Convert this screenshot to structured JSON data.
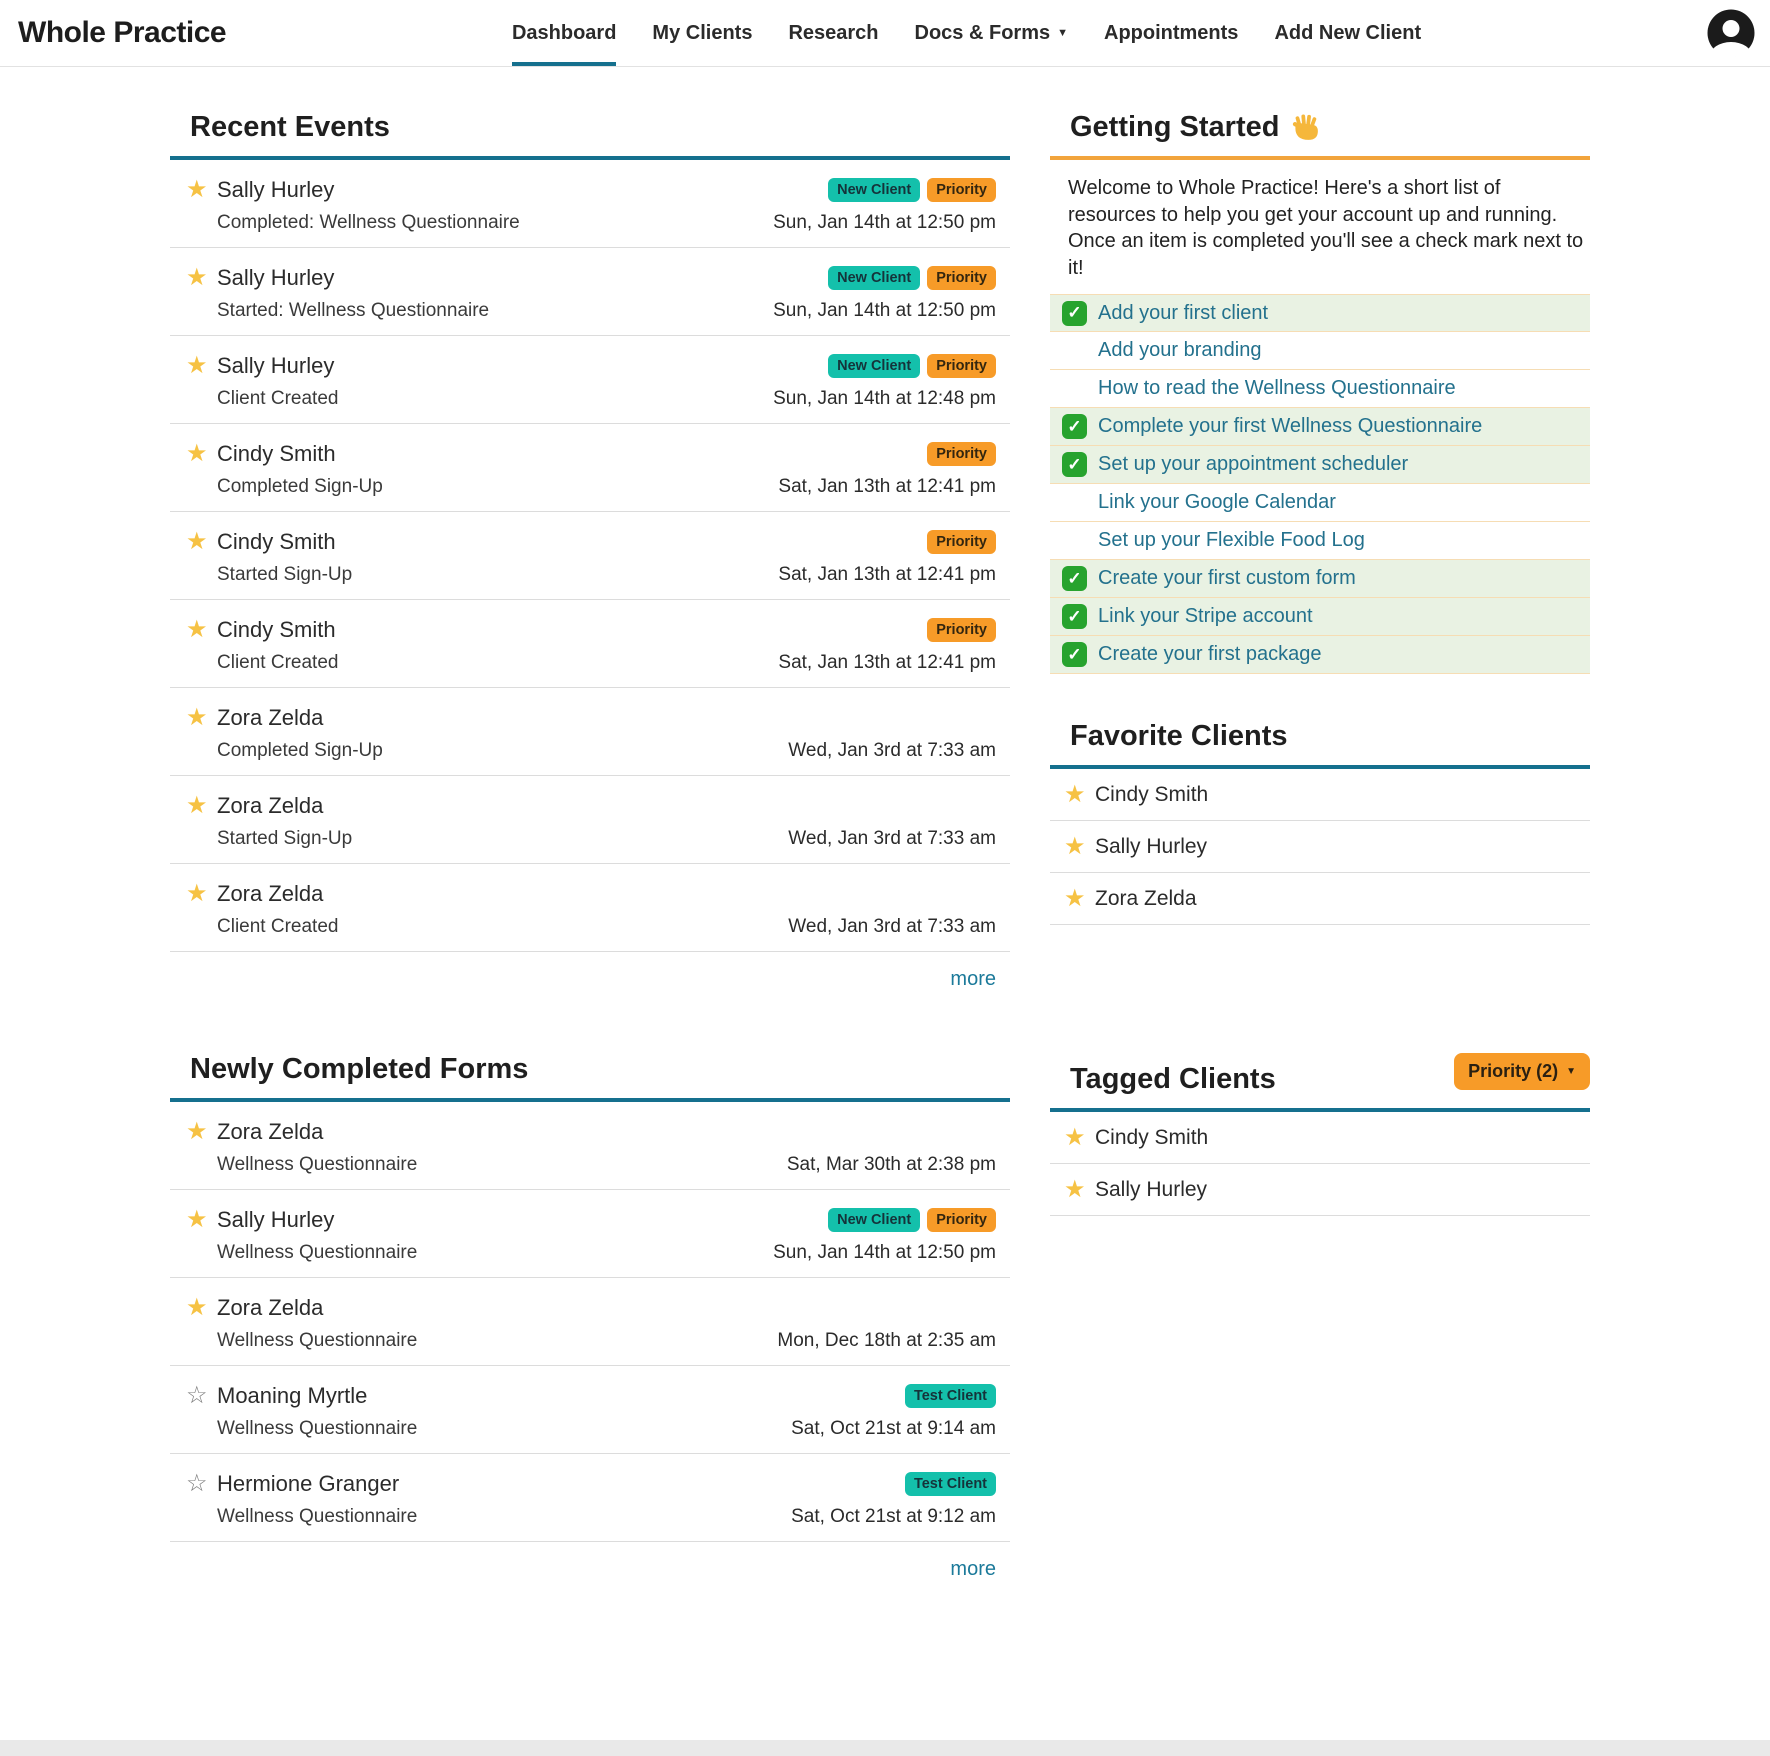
{
  "nav": {
    "brand": "Whole Practice",
    "items": [
      {
        "label": "Dashboard",
        "slug": "dashboard",
        "active": true,
        "caret": false
      },
      {
        "label": "My Clients",
        "slug": "my-clients",
        "active": false,
        "caret": false
      },
      {
        "label": "Research",
        "slug": "research",
        "active": false,
        "caret": false
      },
      {
        "label": "Docs & Forms",
        "slug": "docs-forms",
        "active": false,
        "caret": true
      },
      {
        "label": "Appointments",
        "slug": "appointments",
        "active": false,
        "caret": false
      },
      {
        "label": "Add New Client",
        "slug": "add-new-client",
        "active": false,
        "caret": false
      }
    ]
  },
  "recent_events": {
    "title": "Recent Events",
    "more_label": "more",
    "rows": [
      {
        "name": "Sally Hurley",
        "starred": true,
        "badges": [
          "New Client",
          "Priority"
        ],
        "detail": "Completed: Wellness Questionnaire",
        "timestamp": "Sun, Jan 14th at 12:50 pm"
      },
      {
        "name": "Sally Hurley",
        "starred": true,
        "badges": [
          "New Client",
          "Priority"
        ],
        "detail": "Started: Wellness Questionnaire",
        "timestamp": "Sun, Jan 14th at 12:50 pm"
      },
      {
        "name": "Sally Hurley",
        "starred": true,
        "badges": [
          "New Client",
          "Priority"
        ],
        "detail": "Client Created",
        "timestamp": "Sun, Jan 14th at 12:48 pm"
      },
      {
        "name": "Cindy Smith",
        "starred": true,
        "badges": [
          "Priority"
        ],
        "detail": "Completed Sign-Up",
        "timestamp": "Sat, Jan 13th at 12:41 pm"
      },
      {
        "name": "Cindy Smith",
        "starred": true,
        "badges": [
          "Priority"
        ],
        "detail": "Started Sign-Up",
        "timestamp": "Sat, Jan 13th at 12:41 pm"
      },
      {
        "name": "Cindy Smith",
        "starred": true,
        "badges": [
          "Priority"
        ],
        "detail": "Client Created",
        "timestamp": "Sat, Jan 13th at 12:41 pm"
      },
      {
        "name": "Zora Zelda",
        "starred": true,
        "badges": [],
        "detail": "Completed Sign-Up",
        "timestamp": "Wed, Jan 3rd at 7:33 am"
      },
      {
        "name": "Zora Zelda",
        "starred": true,
        "badges": [],
        "detail": "Started Sign-Up",
        "timestamp": "Wed, Jan 3rd at 7:33 am"
      },
      {
        "name": "Zora Zelda",
        "starred": true,
        "badges": [],
        "detail": "Client Created",
        "timestamp": "Wed, Jan 3rd at 7:33 am"
      }
    ]
  },
  "newly_completed_forms": {
    "title": "Newly Completed Forms",
    "more_label": "more",
    "rows": [
      {
        "name": "Zora Zelda",
        "starred": true,
        "badges": [],
        "detail": "Wellness Questionnaire",
        "timestamp": "Sat, Mar 30th at 2:38 pm"
      },
      {
        "name": "Sally Hurley",
        "starred": true,
        "badges": [
          "New Client",
          "Priority"
        ],
        "detail": "Wellness Questionnaire",
        "timestamp": "Sun, Jan 14th at 12:50 pm"
      },
      {
        "name": "Zora Zelda",
        "starred": true,
        "badges": [],
        "detail": "Wellness Questionnaire",
        "timestamp": "Mon, Dec 18th at 2:35 am"
      },
      {
        "name": "Moaning Myrtle",
        "starred": false,
        "badges": [
          "Test Client"
        ],
        "detail": "Wellness Questionnaire",
        "timestamp": "Sat, Oct 21st at 9:14 am"
      },
      {
        "name": "Hermione Granger",
        "starred": false,
        "badges": [
          "Test Client"
        ],
        "detail": "Wellness Questionnaire",
        "timestamp": "Sat, Oct 21st at 9:12 am"
      }
    ]
  },
  "getting_started": {
    "title": "Getting Started",
    "welcome": "Welcome to Whole Practice! Here's a short list of resources to help you get your account up and running. Once an item is completed you'll see a check mark next to it!",
    "items": [
      {
        "label": "Add your first client",
        "completed": true
      },
      {
        "label": "Add your branding",
        "completed": false
      },
      {
        "label": "How to read the Wellness Questionnaire",
        "completed": false
      },
      {
        "label": "Complete your first Wellness Questionnaire",
        "completed": true
      },
      {
        "label": "Set up your appointment scheduler",
        "completed": true
      },
      {
        "label": "Link your Google Calendar",
        "completed": false
      },
      {
        "label": "Set up your Flexible Food Log",
        "completed": false
      },
      {
        "label": "Create your first custom form",
        "completed": true
      },
      {
        "label": "Link your Stripe account",
        "completed": true
      },
      {
        "label": "Create your first package",
        "completed": true
      }
    ]
  },
  "favorite_clients": {
    "title": "Favorite Clients",
    "clients": [
      {
        "name": "Cindy Smith"
      },
      {
        "name": "Sally Hurley"
      },
      {
        "name": "Zora Zelda"
      }
    ]
  },
  "tagged_clients": {
    "title": "Tagged Clients",
    "filter_label": "Priority (2)",
    "clients": [
      {
        "name": "Cindy Smith"
      },
      {
        "name": "Sally Hurley"
      }
    ]
  },
  "colors": {
    "accent_teal": "#15708e",
    "accent_orange": "#f2a43c",
    "badge_new_client": "#14c0ab",
    "badge_priority": "#f79b28",
    "badge_test_client": "#14c0ab",
    "star_gold": "#f6c244",
    "link": "#1c7a9a",
    "completed_row_bg": "#e9f2e3"
  }
}
